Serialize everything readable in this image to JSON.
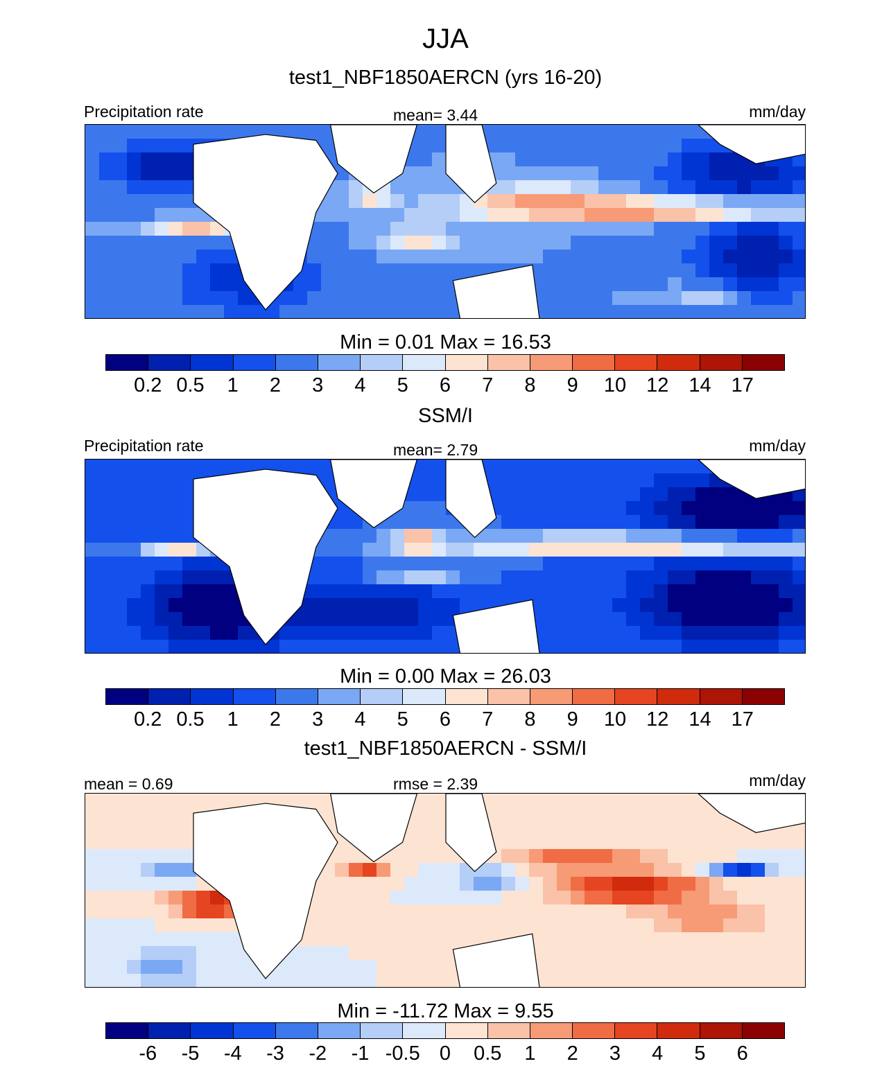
{
  "chart_data": {
    "type": "heatmap",
    "title": "JJA",
    "colormap": [
      "#000080",
      "#0020b0",
      "#0035d4",
      "#1450ec",
      "#3c78ec",
      "#7aa8f4",
      "#b4cef8",
      "#dce9fb",
      "#fde3d2",
      "#fac2a8",
      "#f79a76",
      "#f06c44",
      "#e54521",
      "#d02b0c",
      "#ad1506",
      "#8b0000"
    ],
    "panels": [
      {
        "title": "test1_NBF1850AERCN (yrs 16-20)",
        "left_label": "Precipitation rate",
        "center_label": "mean=   3.44",
        "units": "mm/day",
        "min_max": "Min =   0.01 Max =  16.53",
        "levels": [
          "0.2",
          "0.5",
          "1",
          "2",
          "3",
          "4",
          "5",
          "6",
          "7",
          "8",
          "9",
          "10",
          "12",
          "14",
          "17"
        ]
      },
      {
        "title": "SSM/I",
        "left_label": "Precipitation rate",
        "center_label": "mean=   2.79",
        "units": "mm/day",
        "min_max": "Min =   0.00 Max =  26.03",
        "levels": [
          "0.2",
          "0.5",
          "1",
          "2",
          "3",
          "4",
          "5",
          "6",
          "7",
          "8",
          "9",
          "10",
          "12",
          "14",
          "17"
        ]
      },
      {
        "title": "test1_NBF1850AERCN - SSM/I",
        "left_label": "mean =   0.69",
        "center_label": "rmse =   2.39",
        "units": "mm/day",
        "min_max": "Min = -11.72 Max =   9.55",
        "levels": [
          "-6",
          "-5",
          "-4",
          "-3",
          "-2",
          "-1",
          "-0.5",
          "0",
          "0.5",
          "1",
          "2",
          "3",
          "4",
          "5",
          "6"
        ]
      }
    ]
  }
}
